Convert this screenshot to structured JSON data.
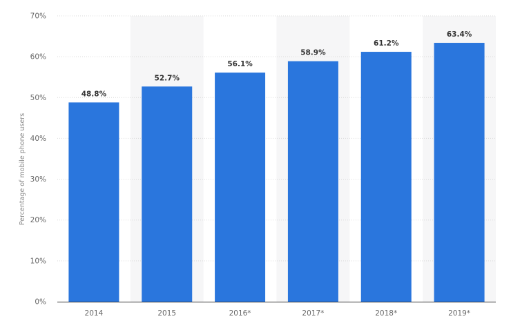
{
  "chart_data": {
    "type": "bar",
    "categories": [
      "2014",
      "2015",
      "2016*",
      "2017*",
      "2018*",
      "2019*"
    ],
    "values": [
      48.8,
      52.7,
      56.1,
      58.9,
      61.2,
      63.4
    ],
    "value_labels": [
      "48.8%",
      "52.7%",
      "56.1%",
      "58.9%",
      "61.2%",
      "63.4%"
    ],
    "title": "",
    "xlabel": "",
    "ylabel": "Percentage of mobile phone users",
    "ylim": [
      0,
      70
    ],
    "yticks": [
      0,
      10,
      20,
      30,
      40,
      50,
      60,
      70
    ],
    "ytick_labels": [
      "0%",
      "10%",
      "20%",
      "30%",
      "40%",
      "50%",
      "60%",
      "70%"
    ],
    "grid": true,
    "legend": "none",
    "colors": {
      "bar": "#2a76dd",
      "alt_column_shading": "#f6f6f7",
      "grid": "#d9d9d9",
      "axis": "#333333"
    }
  }
}
